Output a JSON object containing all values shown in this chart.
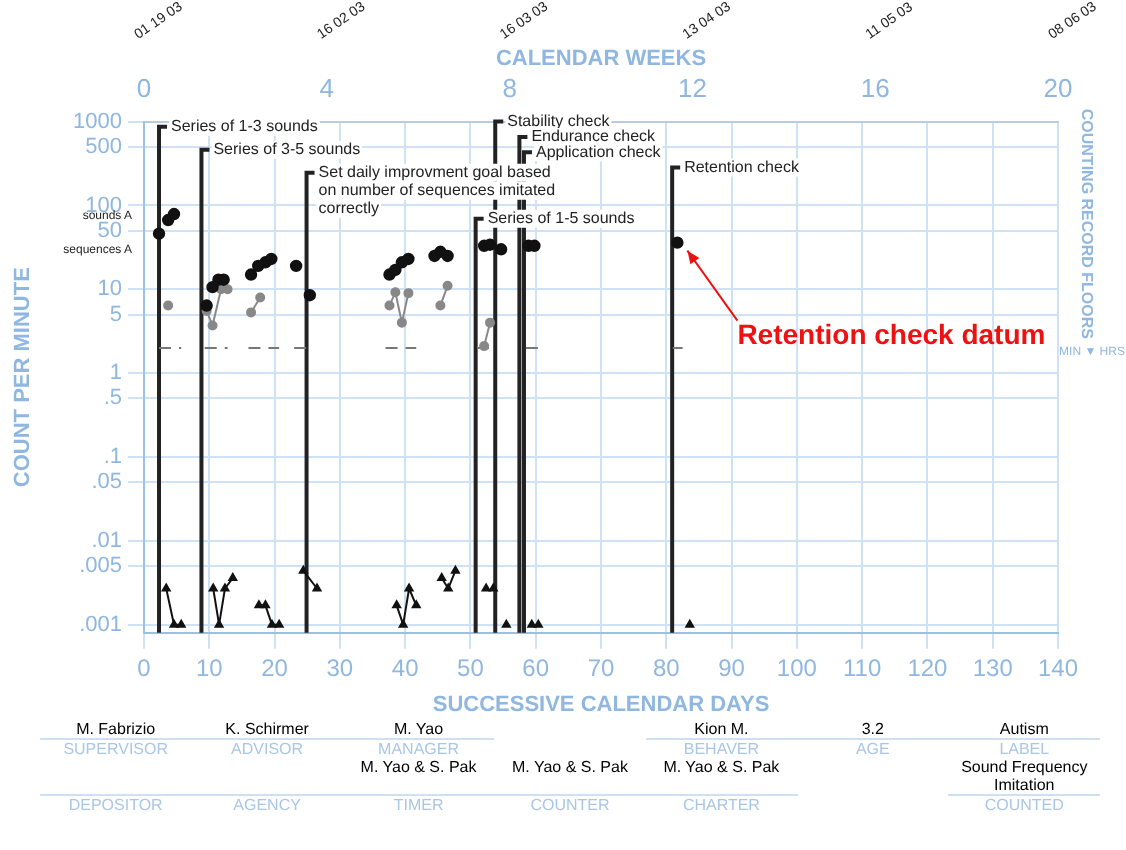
{
  "chart_data": {
    "type": "scatter",
    "xlabel": "SUCCESSIVE CALENDAR DAYS",
    "ylabel": "COUNT PER MINUTE",
    "x2label": "CALENDAR WEEKS",
    "y2label": "COUNTING RECORD FLOORS",
    "log": "y",
    "grid": true,
    "legend": false,
    "xlim": [
      0,
      140
    ],
    "xticks": [
      0,
      10,
      20,
      30,
      40,
      50,
      60,
      70,
      80,
      90,
      100,
      110,
      120,
      130,
      140
    ],
    "x2lim": [
      0,
      20
    ],
    "x2ticks": [
      0,
      4,
      8,
      12,
      16,
      20
    ],
    "ylim": [
      0.0008,
      1000
    ],
    "yticks": [
      1000,
      500,
      100,
      50,
      10,
      5,
      1,
      {
        "value": 0.5,
        "label": ".5"
      },
      {
        "value": 0.1,
        "label": ".1"
      },
      {
        "value": 0.05,
        "label": ".05"
      },
      {
        "value": 0.01,
        "label": ".01"
      },
      {
        "value": 0.005,
        "label": ".005"
      },
      {
        "value": 0.001,
        "label": ".001"
      }
    ],
    "series": [
      {
        "type": "scatter",
        "color": "#111111",
        "marker": "circle",
        "x": [
          2.3,
          3.7,
          4.6,
          9.6,
          10.5,
          11.4,
          12.2,
          16.4,
          17.5,
          18.6,
          19.5,
          23.3,
          25.4,
          37.6,
          38.5,
          39.5,
          40.5,
          44.5,
          45.4,
          46.5,
          52.1,
          53,
          54.7,
          58.9,
          59.8,
          81.7
        ],
        "values": [
          46,
          67,
          79,
          6.4,
          10.6,
          13,
          13,
          15,
          19,
          21,
          23,
          19,
          8.5,
          15,
          17,
          21,
          23,
          25,
          28,
          25,
          33,
          34,
          30,
          33,
          33,
          36
        ]
      },
      {
        "type": "line",
        "color": "#888888",
        "marker": "circle",
        "x": [
          3.7,
          null,
          9.6,
          10.5,
          11.8,
          12.8,
          null,
          16.4,
          17.8,
          null,
          37.6,
          38.5,
          39.5,
          40.5,
          null,
          45.4,
          46.5,
          null,
          52.1,
          53
        ],
        "values": [
          6.4,
          null,
          5.5,
          3.7,
          10,
          10,
          null,
          5.3,
          8,
          null,
          6.4,
          9.2,
          4,
          9,
          null,
          6.4,
          11,
          null,
          2.1,
          4
        ]
      },
      {
        "type": "line",
        "color": "#111111",
        "marker": "triangle",
        "x": [
          3.4,
          4.6,
          5.7,
          null,
          10.6,
          11.5,
          12.4,
          13.6,
          null,
          17.6,
          18.6,
          19.6,
          20.7,
          null,
          24.4,
          26.5,
          null,
          38.7,
          39.7,
          40.6,
          41.7,
          null,
          45.6,
          46.6,
          47.7,
          null,
          52.4,
          null,
          53.5,
          null,
          55.5,
          null,
          59.4,
          null,
          60.4,
          null,
          83.6
        ],
        "values": [
          0.0027,
          0.001,
          0.001,
          null,
          0.0027,
          0.001,
          0.0027,
          0.0036,
          null,
          0.0017,
          0.0017,
          0.001,
          0.001,
          null,
          0.0044,
          0.0027,
          null,
          0.0017,
          0.001,
          0.0027,
          0.0017,
          null,
          0.0036,
          0.0027,
          0.0044,
          null,
          0.0027,
          null,
          0.0027,
          null,
          0.001,
          null,
          0.001,
          null,
          0.001,
          null,
          0.001
        ]
      },
      {
        "type": "line",
        "color": "#777777",
        "marker": "none",
        "line_style": "dashed",
        "x": [
          2.3,
          5.7,
          null,
          9.3,
          12.8,
          null,
          16,
          20.7,
          null,
          23,
          25.4,
          null,
          37,
          41.7,
          null,
          51,
          54,
          null,
          58.5,
          60.4,
          null,
          81,
          82.5
        ],
        "values": [
          2,
          2,
          null,
          2,
          2,
          null,
          2,
          2,
          null,
          2,
          2,
          null,
          2,
          2,
          null,
          2,
          2,
          null,
          2,
          2,
          null,
          2,
          2
        ]
      }
    ],
    "ref_lines": [
      {
        "axis": "x",
        "value": 2.3,
        "label": "Series of 1-3 sounds"
      },
      {
        "axis": "x",
        "value": 8.8,
        "label": "Series of 3-5 sounds"
      },
      {
        "axis": "x",
        "value": 24.9,
        "label": "Set daily improvment goal based on number of sequences imitated correctly"
      },
      {
        "axis": "x",
        "value": 50.8,
        "label": "Series of 1-5 sounds"
      },
      {
        "axis": "x",
        "value": 53.8,
        "label": "Stability check"
      },
      {
        "axis": "x",
        "value": 57.5,
        "label": "Endurance check"
      },
      {
        "axis": "x",
        "value": 58.2,
        "label": "Application check"
      },
      {
        "axis": "x",
        "value": 80.9,
        "label": "Retention check"
      }
    ],
    "annotations": [
      {
        "text": "Retention check datum",
        "x": 81.7,
        "y": 36
      },
      "sounds A",
      "sequences A",
      "MIN ▼ HRS",
      "01 19 03",
      "16 02 03",
      "16 03 03",
      "13 04 03",
      "11 05 03",
      "08 06 03",
      "M. Fabrizio",
      "K. Schirmer",
      "M. Yao",
      "Kion M.",
      "3.2",
      "Autism",
      "SUPERVISOR",
      "ADVISOR",
      "MANAGER",
      "BEHAVER",
      "AGE",
      "LABEL",
      "M. Yao & S. Pak",
      "M. Yao & S. Pak",
      "M. Yao & S. Pak",
      "Sound Frequency Imitation",
      "DEPOSITOR",
      "AGENCY",
      "TIMER",
      "COUNTER",
      "CHARTER",
      "COUNTED"
    ]
  }
}
